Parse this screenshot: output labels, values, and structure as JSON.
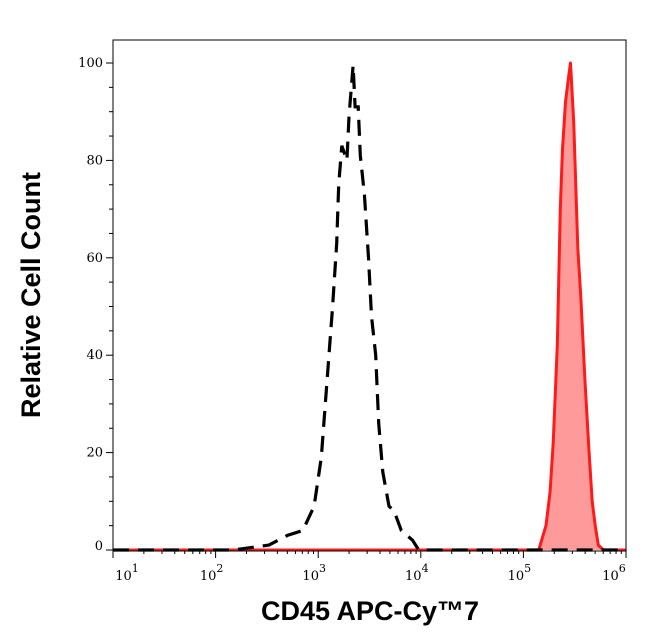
{
  "chart_data": {
    "type": "area",
    "title": "",
    "xlabel": "CD45 APC-Cy™7",
    "ylabel": "Relative Cell Count",
    "xscale": "log",
    "xlim": [
      10,
      1000000
    ],
    "ylim": [
      0,
      100
    ],
    "grid": false,
    "x_ticks": [
      {
        "base": "10",
        "exp": "1",
        "value": 10
      },
      {
        "base": "10",
        "exp": "2",
        "value": 100
      },
      {
        "base": "10",
        "exp": "3",
        "value": 1000
      },
      {
        "base": "10",
        "exp": "4",
        "value": 10000
      },
      {
        "base": "10",
        "exp": "5",
        "value": 100000
      },
      {
        "base": "10",
        "exp": "6",
        "value": 1000000
      }
    ],
    "y_ticks": [
      "0",
      "20",
      "40",
      "60",
      "80",
      "100"
    ],
    "series": [
      {
        "style": "dashed-unfilled",
        "color": "#000000",
        "x": [
          10,
          148,
          331,
          501,
          708,
          912,
          1072,
          1202,
          1380,
          1514,
          1585,
          1698,
          1905,
          1995,
          2188,
          2291,
          2455,
          2570,
          2818,
          3090,
          3311,
          3631,
          3890,
          4266,
          4898,
          5495,
          6457,
          8318,
          9550,
          1000000
        ],
        "y": [
          0,
          0,
          1,
          3,
          4,
          9,
          19,
          33,
          50,
          63,
          75,
          83,
          80,
          89,
          99.5,
          91,
          91,
          81,
          73,
          60,
          48,
          40,
          26,
          16,
          9,
          8,
          4,
          2,
          0,
          0
        ]
      },
      {
        "style": "filled",
        "color": "#ff1a1a",
        "fill": "#ff9a9a",
        "x": [
          10,
          141000,
          166000,
          182000,
          195000,
          214000,
          229000,
          240000,
          257000,
          275000,
          288000,
          309000,
          339000,
          363000,
          398000,
          437000,
          468000,
          501000,
          537000,
          603000,
          1000000
        ],
        "y": [
          0,
          0,
          5,
          12,
          22,
          42,
          70,
          82,
          92,
          97,
          100,
          88,
          62,
          52,
          35,
          20,
          10,
          5,
          1,
          0,
          0
        ]
      }
    ]
  }
}
